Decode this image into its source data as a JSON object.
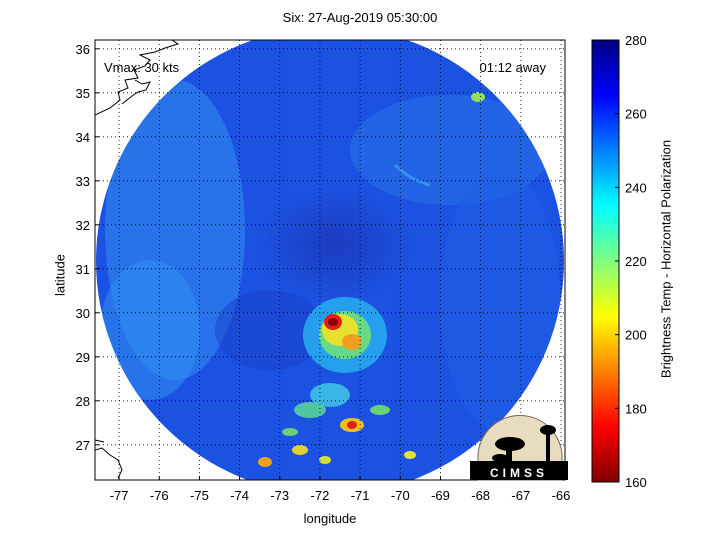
{
  "map": {
    "title": "Six: 27-Aug-2019 05:30:00",
    "xlabel": "longitude",
    "ylabel": "latitude",
    "vmax_label": "Vmax: 30 kts",
    "time_label": "01:12 away",
    "x_ticks": [
      "-77",
      "-76",
      "-75",
      "-74",
      "-73",
      "-72",
      "-71",
      "-70",
      "-69",
      "-68",
      "-67",
      "-66"
    ],
    "y_ticks": [
      "27",
      "28",
      "29",
      "30",
      "31",
      "32",
      "33",
      "34",
      "35",
      "36"
    ],
    "lon_range": [
      -77.6,
      -65.9
    ],
    "lat_range": [
      26.2,
      36.2
    ],
    "grid": "dotted"
  },
  "colorbar": {
    "label": "Brightness Temp - Horizontal Polarization",
    "ticks": [
      "160",
      "180",
      "200",
      "220",
      "240",
      "260",
      "280"
    ],
    "range": [
      160,
      280
    ],
    "colormap": "jet"
  },
  "logo": {
    "text": "CIMSS"
  },
  "colors": {
    "background": "#ffffff",
    "dominant": "#1a4fe0",
    "core": "#d01010"
  }
}
